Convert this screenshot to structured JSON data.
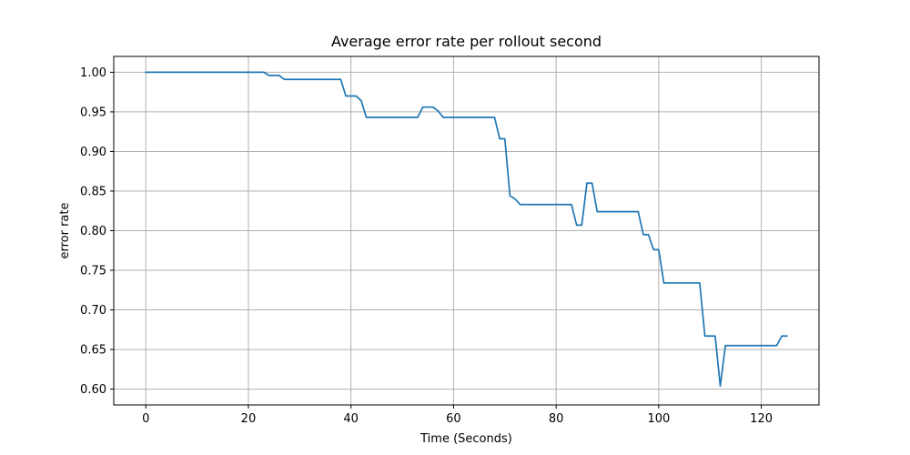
{
  "chart_data": {
    "type": "line",
    "title": "Average error rate per rollout second",
    "xlabel": "Time (Seconds)",
    "ylabel": "error rate",
    "xlim": [
      -6.25,
      131.25
    ],
    "ylim": [
      0.58,
      1.02
    ],
    "xticks": [
      0,
      20,
      40,
      60,
      80,
      100,
      120
    ],
    "yticks": [
      0.6,
      0.65,
      0.7,
      0.75,
      0.8,
      0.85,
      0.9,
      0.95,
      1.0
    ],
    "xtick_labels": [
      "0",
      "20",
      "40",
      "60",
      "80",
      "100",
      "120"
    ],
    "ytick_labels": [
      "0.60",
      "0.65",
      "0.70",
      "0.75",
      "0.80",
      "0.85",
      "0.90",
      "0.95",
      "1.00"
    ],
    "grid": true,
    "series": [
      {
        "color": "#1f77b4",
        "x": [
          0,
          23,
          24,
          26,
          27,
          28,
          38,
          39,
          41,
          42,
          43,
          44,
          53,
          54,
          56,
          57,
          58,
          68,
          69,
          70,
          71,
          72,
          73,
          83,
          84,
          85,
          86,
          87,
          88,
          96,
          97,
          98,
          99,
          100,
          101,
          108,
          109,
          110,
          111,
          112,
          113,
          123,
          124,
          125
        ],
        "y": [
          1.0,
          1.0,
          0.996,
          0.996,
          0.991,
          0.991,
          0.991,
          0.97,
          0.97,
          0.964,
          0.943,
          0.943,
          0.943,
          0.956,
          0.956,
          0.951,
          0.943,
          0.943,
          0.916,
          0.916,
          0.844,
          0.84,
          0.833,
          0.833,
          0.807,
          0.807,
          0.86,
          0.86,
          0.824,
          0.824,
          0.795,
          0.795,
          0.776,
          0.776,
          0.734,
          0.734,
          0.667,
          0.667,
          0.667,
          0.604,
          0.655,
          0.655,
          0.667,
          0.667
        ]
      }
    ]
  }
}
